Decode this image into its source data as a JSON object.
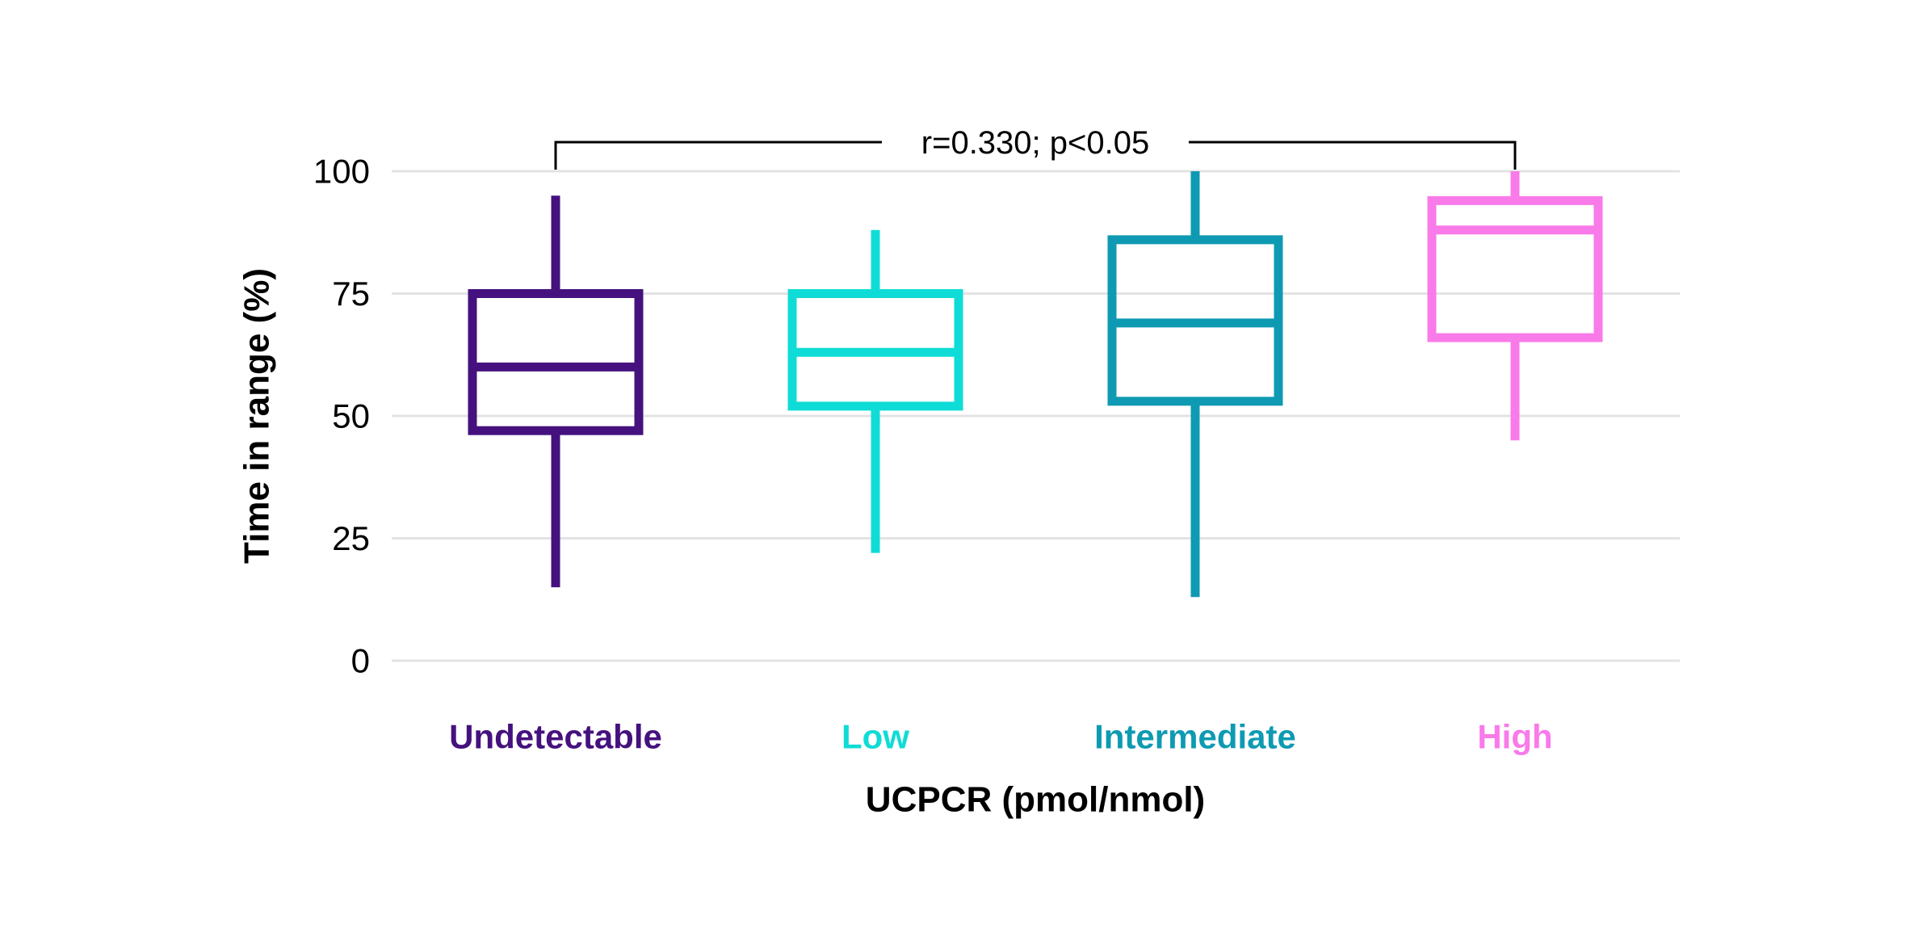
{
  "chart_data": {
    "type": "box",
    "title": "",
    "xlabel": "UCPCR (pmol/nmol)",
    "ylabel": "Time in range (%)",
    "ylim": [
      0,
      100
    ],
    "yticks": [
      100,
      75,
      50,
      25,
      0
    ],
    "grid": true,
    "legend": "none",
    "categories": [
      "Undetectable",
      "Low",
      "Intermediate",
      "High"
    ],
    "colors": [
      "#45117E",
      "#0FDCD6",
      "#0E9AB2",
      "#F97AE9"
    ],
    "boxes": [
      {
        "category": "Undetectable",
        "min": 15,
        "q1": 47,
        "median": 60,
        "q3": 75,
        "max": 95
      },
      {
        "category": "Low",
        "min": 22,
        "q1": 52,
        "median": 63,
        "q3": 75,
        "max": 88
      },
      {
        "category": "Intermediate",
        "min": 13,
        "q1": 53,
        "median": 69,
        "q3": 86,
        "max": 100
      },
      {
        "category": "High",
        "min": 45,
        "q1": 66,
        "median": 88,
        "q3": 94,
        "max": 100
      }
    ],
    "annotation": {
      "text": "r=0.330; p<0.05",
      "from_category": "Undetectable",
      "to_category": "High",
      "line_color": "#000000"
    },
    "axis_text_color": "#000000",
    "gridline_color": "#e3e3e3",
    "background_color": "#ffffff"
  }
}
